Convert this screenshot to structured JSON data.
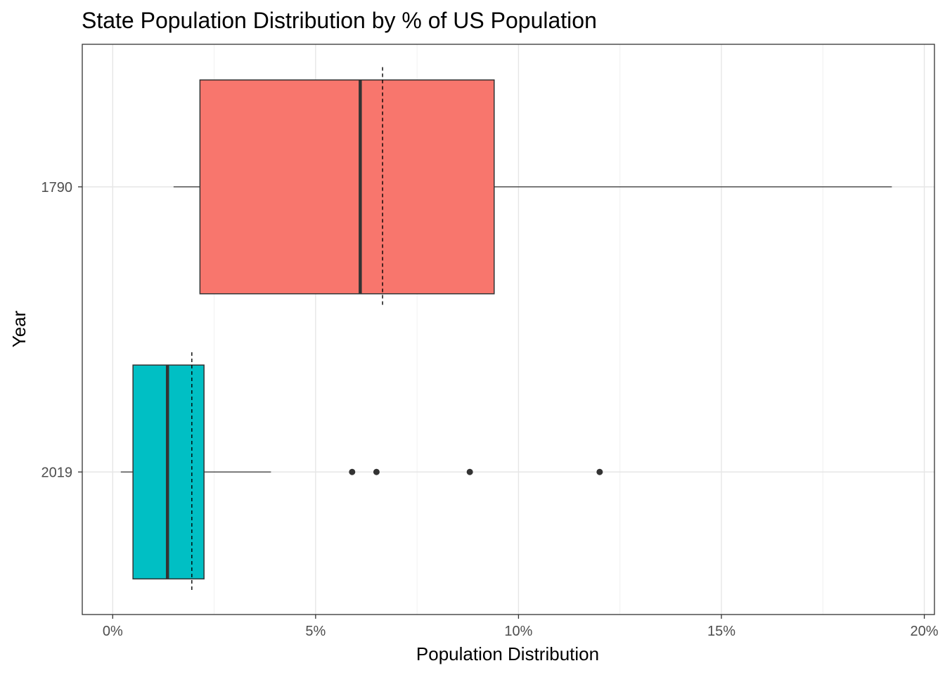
{
  "chart_data": {
    "type": "boxplot",
    "orientation": "horizontal",
    "title": "State Population Distribution by % of US Population",
    "xlabel": "Population Distribution",
    "ylabel": "Year",
    "xlim": [
      -0.75,
      20.25
    ],
    "x_ticks": [
      0,
      5,
      10,
      15,
      20
    ],
    "x_tick_labels": [
      "0%",
      "5%",
      "10%",
      "15%",
      "20%"
    ],
    "categories": [
      "1790",
      "2019"
    ],
    "series": [
      {
        "category": "1790",
        "color": "#F8766D",
        "whisker_low": 1.5,
        "q1": 2.15,
        "median": 6.1,
        "q3": 9.4,
        "whisker_high": 19.2,
        "mean": 6.65,
        "outliers": []
      },
      {
        "category": "2019",
        "color": "#00BFC4",
        "whisker_low": 0.2,
        "q1": 0.5,
        "median": 1.35,
        "q3": 2.25,
        "whisker_high": 3.9,
        "mean": 1.95,
        "outliers": [
          5.9,
          6.5,
          8.8,
          12.0
        ]
      }
    ],
    "grid": true,
    "legend": "none"
  }
}
